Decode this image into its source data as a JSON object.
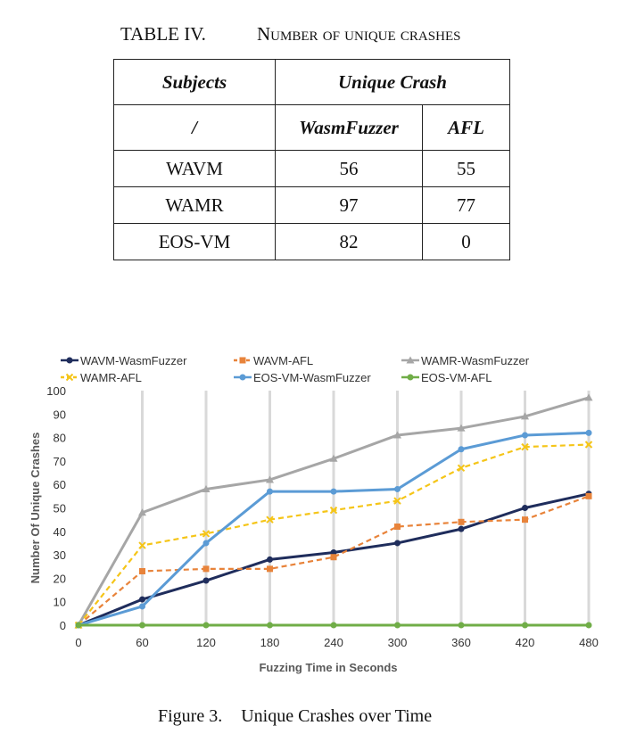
{
  "table": {
    "number": "TABLE IV.",
    "title": "Number of unique crashes",
    "header1": {
      "subjects": "Subjects",
      "group": "Unique Crash"
    },
    "header2": {
      "slash": "/",
      "wasm": "WasmFuzzer",
      "afl": "AFL"
    },
    "rows": [
      {
        "subject": "WAVM",
        "wasm": "56",
        "afl": "55"
      },
      {
        "subject": "WAMR",
        "wasm": "97",
        "afl": "77"
      },
      {
        "subject": "EOS-VM",
        "wasm": "82",
        "afl": "0"
      }
    ]
  },
  "chart_data": {
    "type": "line",
    "xlabel": "Fuzzing Time in Seconds",
    "ylabel": "Number Of Unique Crashes",
    "x": [
      0,
      60,
      120,
      180,
      240,
      300,
      360,
      420,
      480
    ],
    "xlim": [
      0,
      480
    ],
    "ylim": [
      0,
      100
    ],
    "yticks": [
      0,
      10,
      20,
      30,
      40,
      50,
      60,
      70,
      80,
      90,
      100
    ],
    "grid": "vertical",
    "legend_position": "top",
    "series": [
      {
        "name": "WAVM-WasmFuzzer",
        "color": "#1f2d5c",
        "dashed": false,
        "marker": "circle",
        "values": [
          0,
          11,
          19,
          28,
          31,
          35,
          41,
          50,
          56
        ]
      },
      {
        "name": "WAVM-AFL",
        "color": "#e8833a",
        "dashed": true,
        "marker": "square",
        "values": [
          0,
          23,
          24,
          24,
          29,
          42,
          44,
          45,
          55
        ]
      },
      {
        "name": "WAMR-WasmFuzzer",
        "color": "#a6a6a6",
        "dashed": false,
        "marker": "triangle",
        "values": [
          0,
          48,
          58,
          62,
          71,
          81,
          84,
          89,
          97
        ]
      },
      {
        "name": "WAMR-AFL",
        "color": "#f5c518",
        "dashed": true,
        "marker": "x",
        "values": [
          0,
          34,
          39,
          45,
          49,
          53,
          67,
          76,
          77
        ]
      },
      {
        "name": "EOS-VM-WasmFuzzer",
        "color": "#5b9bd5",
        "dashed": false,
        "marker": "circle",
        "values": [
          0,
          8,
          35,
          57,
          57,
          58,
          75,
          81,
          82
        ]
      },
      {
        "name": "EOS-VM-AFL",
        "color": "#70ad47",
        "dashed": false,
        "marker": "circle",
        "values": [
          0,
          0,
          0,
          0,
          0,
          0,
          0,
          0,
          0
        ]
      }
    ]
  },
  "figure": {
    "label": "Figure 3.",
    "title": "Unique Crashes over Time"
  }
}
